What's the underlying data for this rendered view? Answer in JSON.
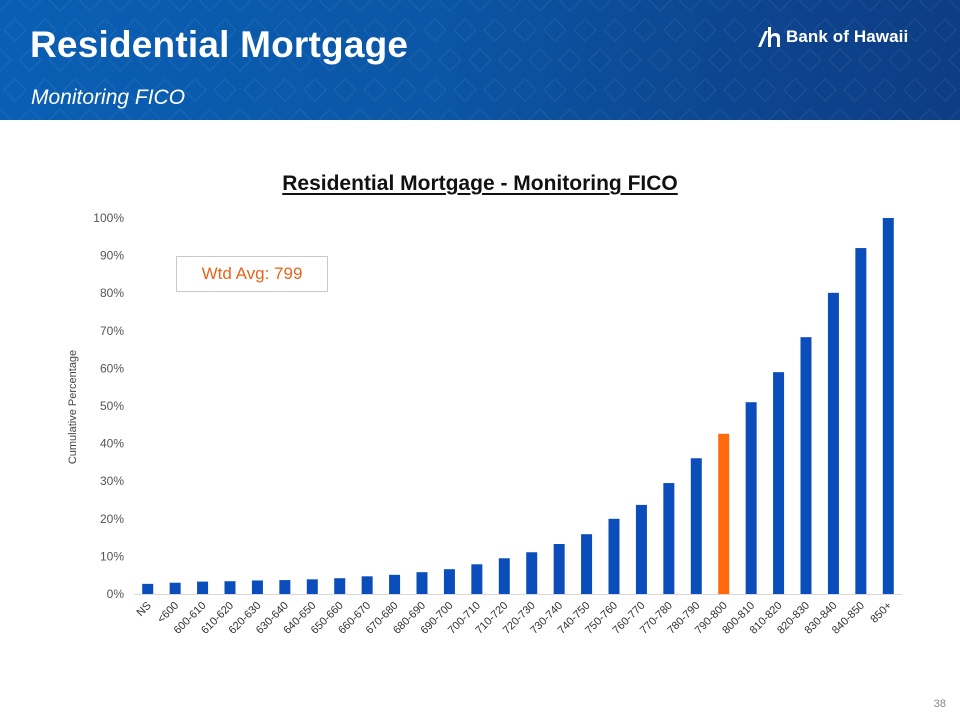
{
  "header": {
    "title": "Residential Mortgage",
    "subtitle": "Monitoring FICO",
    "logo_text": "Bank of Hawaii"
  },
  "annotation": {
    "text": "Wtd Avg: 799"
  },
  "page_number": "38",
  "colors": {
    "bar": "#0a4dbb",
    "highlight": "#ff6a0d",
    "banner": "#0b56a6",
    "annotation_text": "#e8641a"
  },
  "chart_data": {
    "type": "bar",
    "title": "Residential Mortgage - Monitoring FICO",
    "xlabel": "",
    "ylabel": "Cumulative Percentage",
    "ylim": [
      0,
      100
    ],
    "yticks": [
      "0%",
      "10%",
      "20%",
      "30%",
      "40%",
      "50%",
      "60%",
      "70%",
      "80%",
      "90%",
      "100%"
    ],
    "grid": false,
    "categories": [
      "NS",
      "<600",
      "600-610",
      "610-620",
      "620-630",
      "630-640",
      "640-650",
      "650-660",
      "660-670",
      "670-680",
      "680-690",
      "690-700",
      "700-710",
      "710-720",
      "720-730",
      "730-740",
      "740-750",
      "750-760",
      "760-770",
      "770-780",
      "780-790",
      "790-800",
      "800-810",
      "810-820",
      "820-830",
      "830-840",
      "840-850",
      "850+"
    ],
    "values": [
      2.7,
      3.0,
      3.3,
      3.4,
      3.6,
      3.7,
      3.9,
      4.2,
      4.7,
      5.1,
      5.8,
      6.6,
      7.9,
      9.5,
      11.1,
      13.3,
      15.9,
      20.0,
      23.7,
      29.5,
      36.1,
      42.6,
      51.0,
      59.0,
      68.3,
      80.1,
      92.0,
      100.0
    ],
    "highlight_category": "790-800"
  }
}
